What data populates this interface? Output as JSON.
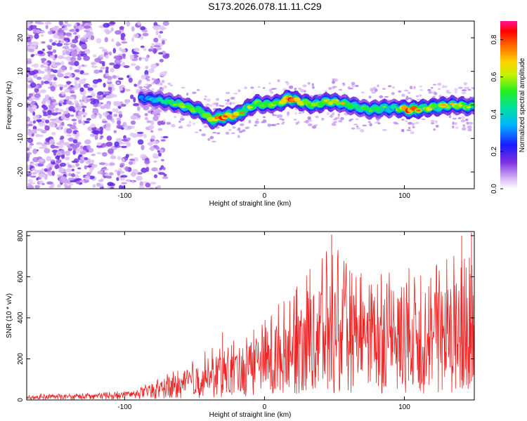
{
  "title": "S173.2026.078.11.11.C29",
  "colors": {
    "snr_line": "#ee2222",
    "axis": "#000000",
    "background": "#ffffff"
  },
  "chart_data": [
    {
      "type": "heatmap",
      "xlabel": "Height of straight line (km)",
      "ylabel": "Frequency (Hz)",
      "xlim": [
        -170,
        150
      ],
      "ylim": [
        -25,
        25
      ],
      "xticks": [
        -100,
        0,
        100
      ],
      "xtick_labels": [
        "-100",
        "0",
        "100"
      ],
      "yticks": [
        -20,
        -10,
        0,
        10,
        20
      ],
      "ytick_labels": [
        "-20",
        "-10",
        "0",
        "10",
        "20"
      ],
      "ridge": {
        "x": [
          -85,
          -70,
          -60,
          -45,
          -38,
          -30,
          -20,
          -12,
          -5,
          0,
          10,
          18,
          25,
          35,
          45,
          55,
          65,
          75,
          85,
          95,
          105,
          115,
          125,
          135,
          145
        ],
        "freq": [
          2,
          1,
          0,
          -2,
          -4.5,
          -3.5,
          -3,
          -1,
          0.5,
          0,
          0.5,
          2,
          1,
          0,
          1,
          0.5,
          -0.5,
          -1.5,
          -1,
          -1,
          -1.5,
          -1,
          -0.5,
          0,
          -0.5
        ],
        "amplitude": [
          0.3,
          0.45,
          0.5,
          0.55,
          0.6,
          0.75,
          0.65,
          0.6,
          0.55,
          0.5,
          0.55,
          0.8,
          0.6,
          0.55,
          0.6,
          0.55,
          0.5,
          0.5,
          0.55,
          0.5,
          0.8,
          0.55,
          0.6,
          0.55,
          0.5
        ]
      },
      "noise_region_x": [
        -170,
        -80
      ],
      "colorbar": {
        "label": "Normalized spectral amplitude",
        "range": [
          0,
          0.9
        ],
        "ticks": [
          0.0,
          0.2,
          0.4,
          0.6,
          0.8
        ],
        "tick_labels": [
          "0.0",
          "0.2",
          "0.4",
          "0.6",
          "0.8"
        ]
      }
    },
    {
      "type": "line",
      "xlabel": "Height of straight line (km)",
      "ylabel": "SNR (10 * v/v)",
      "xlim": [
        -170,
        150
      ],
      "ylim": [
        0,
        820
      ],
      "xticks": [
        -100,
        0,
        100
      ],
      "xtick_labels": [
        "-100",
        "0",
        "100"
      ],
      "yticks": [
        0,
        200,
        400,
        600,
        800
      ],
      "ytick_labels": [
        "0",
        "200",
        "400",
        "600",
        "800"
      ],
      "envelope": {
        "x": [
          -170,
          -140,
          -110,
          -90,
          -80,
          -60,
          -40,
          -20,
          0,
          10,
          20,
          30,
          40,
          50,
          60,
          80,
          100,
          120,
          140,
          150
        ],
        "baseline": [
          15,
          15,
          20,
          30,
          50,
          70,
          100,
          130,
          180,
          200,
          230,
          300,
          320,
          330,
          320,
          300,
          310,
          300,
          320,
          300
        ],
        "peak": [
          30,
          30,
          40,
          60,
          90,
          160,
          250,
          300,
          420,
          480,
          520,
          620,
          720,
          760,
          650,
          640,
          640,
          680,
          760,
          800
        ]
      },
      "highlights": [
        {
          "x": 48,
          "y": 805
        },
        {
          "x": 148,
          "y": 815
        },
        {
          "x": 141,
          "y": 800
        },
        {
          "x": -30,
          "y": 330
        }
      ]
    }
  ]
}
